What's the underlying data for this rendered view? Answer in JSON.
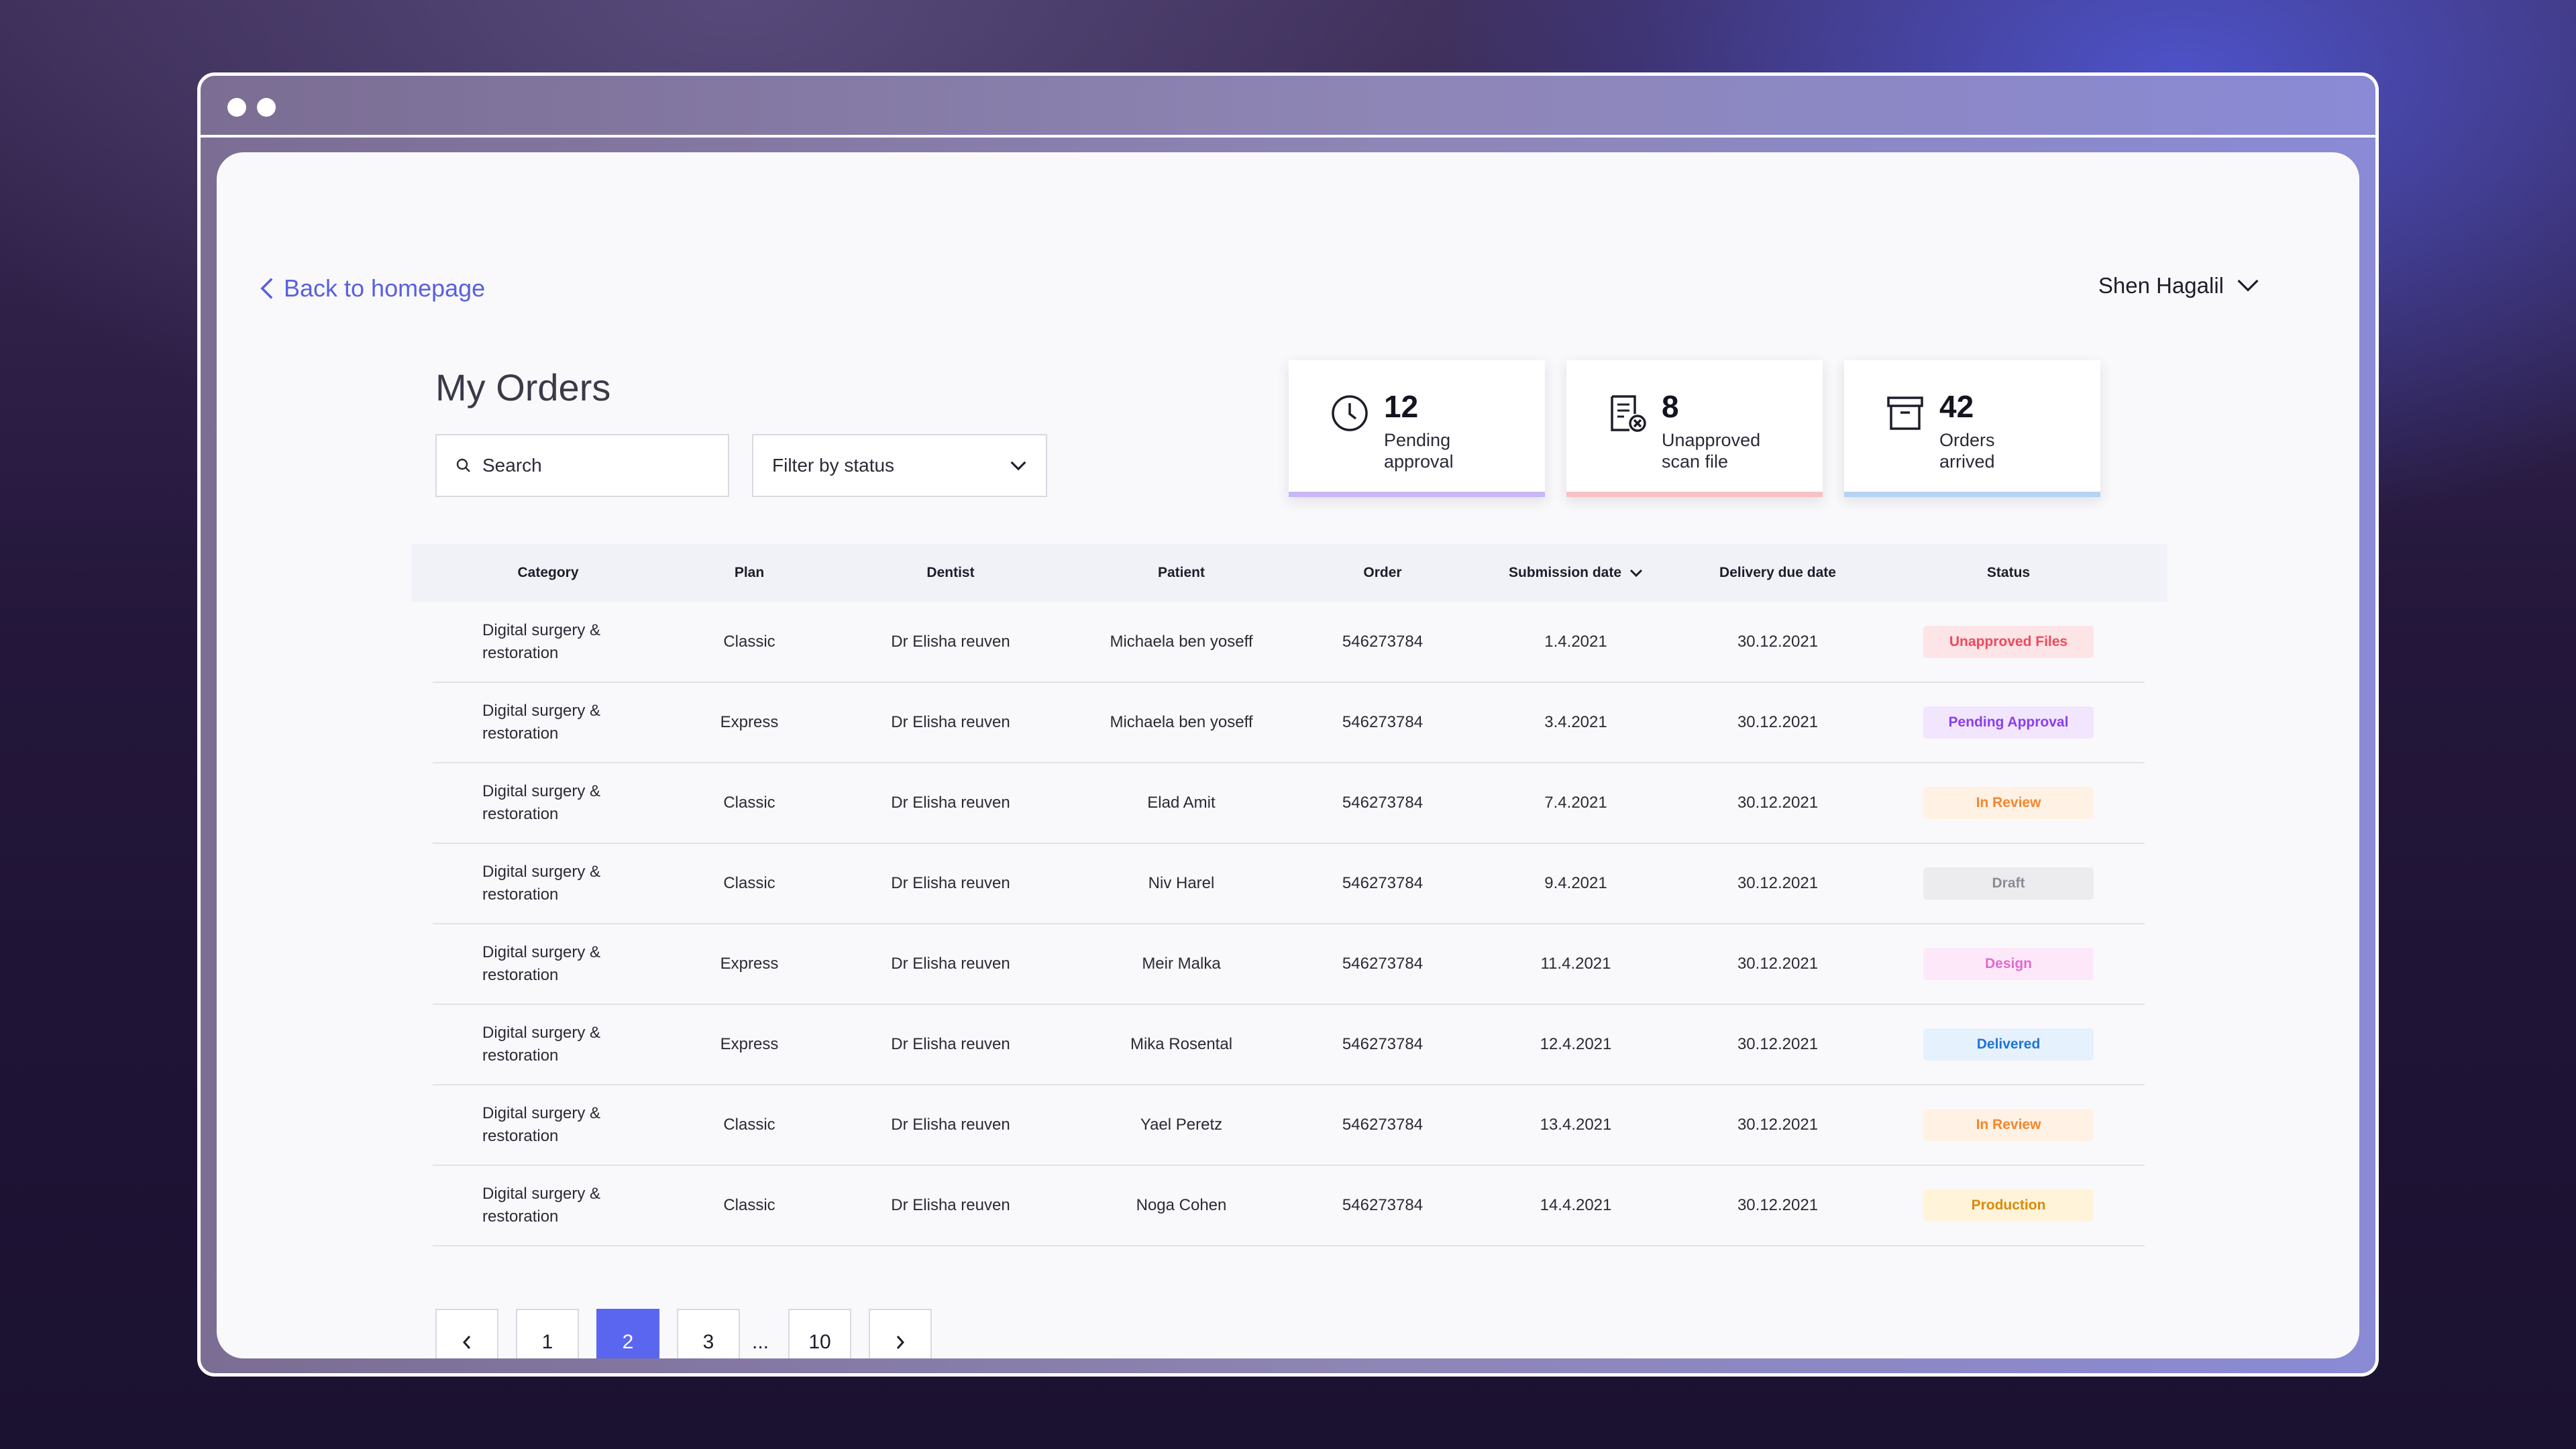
{
  "header": {
    "back_label": "Back to homepage",
    "user_name": "Shen Hagalil"
  },
  "page": {
    "title": "My Orders"
  },
  "search": {
    "placeholder": "Search",
    "value": ""
  },
  "filter": {
    "label": "Filter by status"
  },
  "stats": [
    {
      "value": "12",
      "label_line1": "Pending",
      "label_line2": "approval",
      "icon": "clock-icon",
      "accent": "#c9b7f7"
    },
    {
      "value": "8",
      "label_line1": "Unapproved",
      "label_line2": "scan file",
      "icon": "file-rejected-icon",
      "accent": "#f6c2c4"
    },
    {
      "value": "42",
      "label_line1": "Orders",
      "label_line2": "arrived",
      "icon": "archive-box-icon",
      "accent": "#b7d3f3"
    }
  ],
  "table": {
    "columns": [
      "Category",
      "Plan",
      "Dentist",
      "Patient",
      "Order",
      "Submission date",
      "Delivery due date",
      "Status"
    ],
    "rows": [
      {
        "category_line1": "Digital surgery  &",
        "category_line2": "restoration",
        "plan": "Classic",
        "dentist": "Dr Elisha reuven",
        "patient": "Michaela ben yoseff",
        "order": "546273784",
        "submission": "1.4.2021",
        "due": "30.12.2021",
        "status": "Unapproved Files",
        "status_color": "#f0485c",
        "status_bg": "#fde4e7"
      },
      {
        "category_line1": "Digital surgery  &",
        "category_line2": "restoration",
        "plan": "Express",
        "dentist": "Dr Elisha reuven",
        "patient": "Michaela ben yoseff",
        "order": "546273784",
        "submission": "3.4.2021",
        "due": "30.12.2021",
        "status": "Pending Approval",
        "status_color": "#8b3df0",
        "status_bg": "#f1e6fe"
      },
      {
        "category_line1": "Digital surgery  &",
        "category_line2": "restoration",
        "plan": "Classic",
        "dentist": "Dr Elisha reuven",
        "patient": "Elad Amit",
        "order": "546273784",
        "submission": "7.4.2021",
        "due": "30.12.2021",
        "status": "In Review",
        "status_color": "#f5862e",
        "status_bg": "#fff1e4"
      },
      {
        "category_line1": "Digital surgery  &",
        "category_line2": "restoration",
        "plan": "Classic",
        "dentist": "Dr Elisha reuven",
        "patient": "Niv Harel",
        "order": "546273784",
        "submission": "9.4.2021",
        "due": "30.12.2021",
        "status": "Draft",
        "status_color": "#8b8b95",
        "status_bg": "#ececee"
      },
      {
        "category_line1": "Digital surgery  &",
        "category_line2": "restoration",
        "plan": "Express",
        "dentist": "Dr Elisha reuven",
        "patient": "Meir Malka",
        "order": "546273784",
        "submission": "11.4.2021",
        "due": "30.12.2021",
        "status": "Design",
        "status_color": "#e069d2",
        "status_bg": "#fde8fa"
      },
      {
        "category_line1": "Digital surgery  &",
        "category_line2": "restoration",
        "plan": "Express",
        "dentist": "Dr Elisha reuven",
        "patient": "Mika Rosental",
        "order": "546273784",
        "submission": "12.4.2021",
        "due": "30.12.2021",
        "status": "Delivered",
        "status_color": "#1e74d8",
        "status_bg": "#e5f1fd"
      },
      {
        "category_line1": "Digital surgery  &",
        "category_line2": "restoration",
        "plan": "Classic",
        "dentist": "Dr Elisha reuven",
        "patient": "Yael Peretz",
        "order": "546273784",
        "submission": "13.4.2021",
        "due": "30.12.2021",
        "status": "In Review",
        "status_color": "#f5862e",
        "status_bg": "#fff1e4"
      },
      {
        "category_line1": "Digital surgery  &",
        "category_line2": "restoration",
        "plan": "Classic",
        "dentist": "Dr Elisha reuven",
        "patient": "Noga Cohen",
        "order": "546273784",
        "submission": "14.4.2021",
        "due": "30.12.2021",
        "status": "Production",
        "status_color": "#d98a0b",
        "status_bg": "#fff4d9"
      }
    ]
  },
  "pagination": {
    "pages": [
      "1",
      "2",
      "3",
      "10"
    ],
    "current": "2",
    "ellipsis": "..."
  },
  "colors": {
    "accent": "#5b66f0",
    "link": "#5a5fe0"
  }
}
